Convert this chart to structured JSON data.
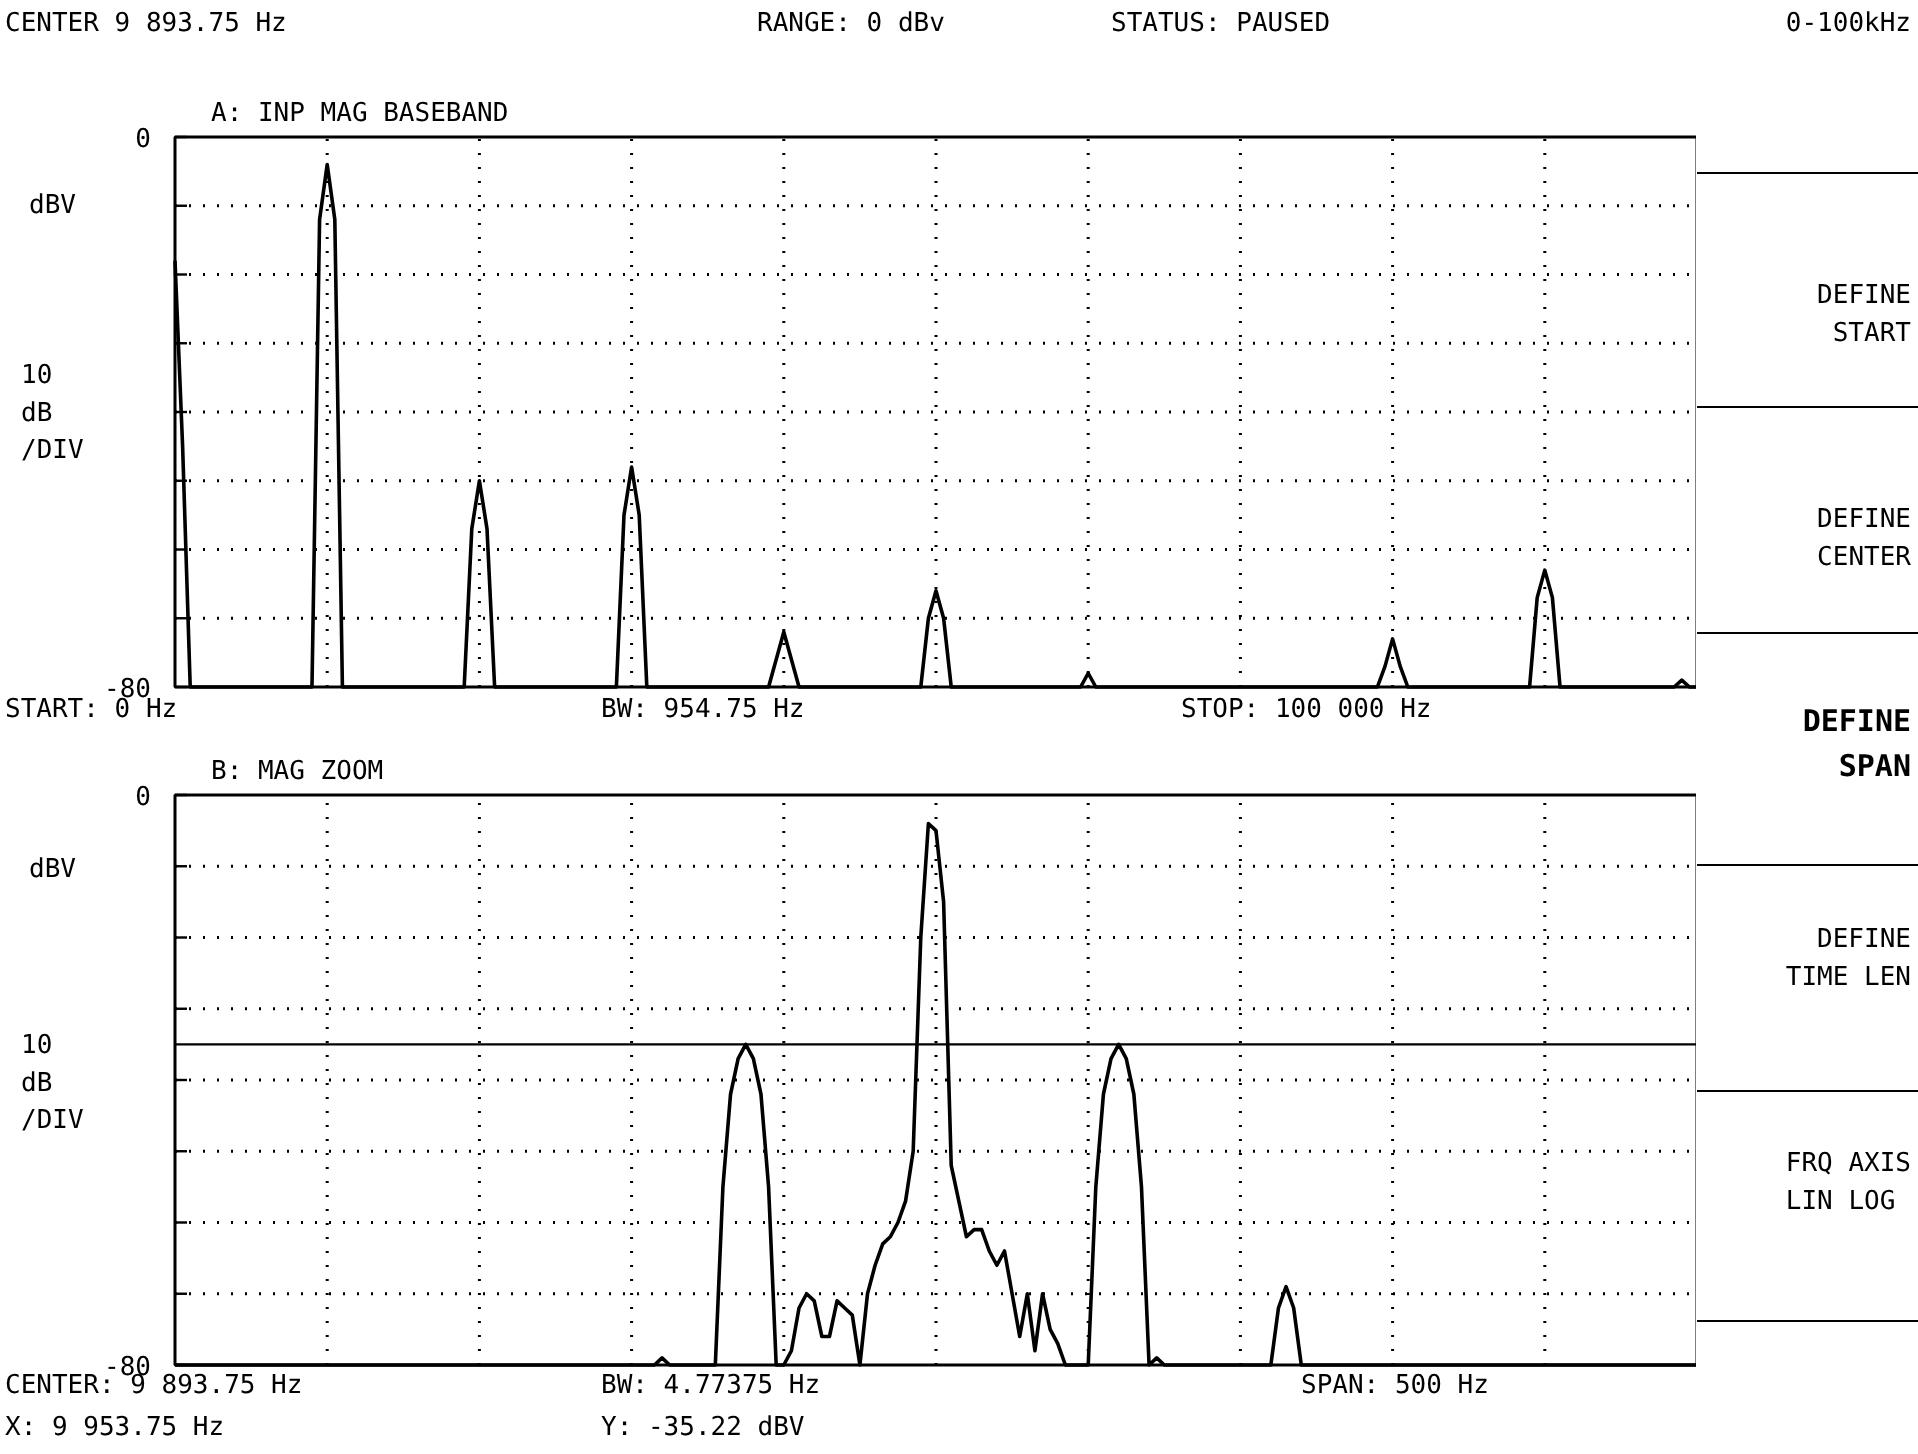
{
  "chart_data": [
    {
      "type": "line",
      "title": "A: INP MAG    BASEBAND",
      "ylim": [
        -80,
        0
      ],
      "categories": [
        null,
        null,
        null,
        null,
        null,
        null,
        null,
        null,
        null,
        null,
        null,
        null,
        null,
        null,
        null,
        null,
        null,
        null,
        null,
        null,
        null,
        null,
        null,
        null,
        null,
        null,
        null,
        null,
        null,
        null,
        null,
        null,
        null,
        null,
        null,
        null,
        null,
        null,
        null,
        null,
        null,
        null,
        null,
        null,
        null,
        null,
        null,
        null,
        null,
        null,
        null,
        null,
        null,
        null,
        null,
        null,
        null,
        null,
        null,
        null,
        null,
        null,
        null,
        null,
        null,
        null,
        null,
        null,
        null,
        null,
        null,
        null,
        null,
        null,
        null,
        null,
        null,
        null,
        null,
        null,
        null,
        null,
        null,
        null,
        null,
        null,
        null,
        null,
        null,
        null,
        null,
        null,
        null,
        null,
        null,
        null,
        null,
        null,
        null,
        null,
        null,
        null,
        null,
        null,
        null,
        null,
        null,
        null,
        null,
        null,
        null,
        null,
        null,
        null,
        null,
        null,
        null,
        null,
        null,
        null,
        null,
        null,
        null,
        null,
        null,
        null,
        null,
        null,
        null,
        null,
        null,
        null,
        null,
        null,
        null,
        null,
        null,
        null,
        null,
        null,
        null,
        null,
        null,
        null,
        null,
        null,
        null,
        null,
        null,
        null,
        null,
        null,
        null,
        null,
        null,
        null,
        null,
        null,
        null,
        null,
        null,
        null,
        null,
        null,
        null,
        null,
        null,
        null,
        null,
        null,
        null,
        null,
        null,
        null,
        null,
        null,
        null,
        null,
        null,
        null,
        null,
        null,
        null,
        null,
        null,
        null,
        null,
        null,
        null,
        null,
        null,
        null,
        null,
        null,
        null,
        null,
        null,
        null,
        null,
        null,
        null
      ],
      "yticks": [
        0,
        {
          "value": -10,
          "label": null
        },
        {
          "value": -20,
          "label": null
        },
        {
          "value": -30,
          "label": null
        },
        {
          "value": -40,
          "label": null
        },
        {
          "value": -50,
          "label": null
        },
        {
          "value": -60,
          "label": null
        },
        {
          "value": -70,
          "label": null
        },
        -80
      ],
      "tick_labels": "y",
      "grid": true,
      "marker": "none",
      "line_style": "solid",
      "series": [
        {
          "color": "#000000",
          "values": [
            -18,
            -45,
            -80,
            -80,
            -80,
            -80,
            -80,
            -80,
            -80,
            -80,
            -80,
            -80,
            -80,
            -80,
            -80,
            -80,
            -80,
            -80,
            -80,
            -12,
            -4,
            -12,
            -80,
            -80,
            -80,
            -80,
            -80,
            -80,
            -80,
            -80,
            -80,
            -80,
            -80,
            -80,
            -80,
            -80,
            -80,
            -80,
            -80,
            -57,
            -50,
            -57,
            -80,
            -80,
            -80,
            -80,
            -80,
            -80,
            -80,
            -80,
            -80,
            -80,
            -80,
            -80,
            -80,
            -80,
            -80,
            -80,
            -80,
            -55,
            -48,
            -55,
            -80,
            -80,
            -80,
            -80,
            -80,
            -80,
            -80,
            -80,
            -80,
            -80,
            -80,
            -80,
            -80,
            -80,
            -80,
            -80,
            -80,
            -76,
            -72,
            -76,
            -80,
            -80,
            -80,
            -80,
            -80,
            -80,
            -80,
            -80,
            -80,
            -80,
            -80,
            -80,
            -80,
            -80,
            -80,
            -80,
            -80,
            -70,
            -66,
            -70,
            -80,
            -80,
            -80,
            -80,
            -80,
            -80,
            -80,
            -80,
            -80,
            -80,
            -80,
            -80,
            -80,
            -80,
            -80,
            -80,
            -80,
            -80,
            -78,
            -80,
            -80,
            -80,
            -80,
            -80,
            -80,
            -80,
            -80,
            -80,
            -80,
            -80,
            -80,
            -80,
            -80,
            -80,
            -80,
            -80,
            -80,
            -80,
            -80,
            -80,
            -80,
            -80,
            -80,
            -80,
            -80,
            -80,
            -80,
            -80,
            -80,
            -80,
            -80,
            -80,
            -80,
            -80,
            -80,
            -80,
            -80,
            -77,
            -73,
            -77,
            -80,
            -80,
            -80,
            -80,
            -80,
            -80,
            -80,
            -80,
            -80,
            -80,
            -80,
            -80,
            -80,
            -80,
            -80,
            -80,
            -80,
            -67,
            -63,
            -67,
            -80,
            -80,
            -80,
            -80,
            -80,
            -80,
            -80,
            -80,
            -80,
            -80,
            -80,
            -80,
            -80,
            -80,
            -80,
            -80,
            -79,
            -80,
            -80
          ]
        }
      ],
      "annotations": [
        "CENTER  9 893.75 Hz",
        "RANGE: 0 dBv",
        "STATUS: PAUSED",
        "dBV",
        "10\ndB\n/DIV",
        "START: 0  Hz",
        "BW: 954.75 Hz",
        "STOP: 100 000 Hz"
      ]
    },
    {
      "type": "line",
      "title": "B: MAG    ZOOM",
      "ylim": [
        -80,
        0
      ],
      "categories": [
        null,
        null,
        null,
        null,
        null,
        null,
        null,
        null,
        null,
        null,
        null,
        null,
        null,
        null,
        null,
        null,
        null,
        null,
        null,
        null,
        null,
        null,
        null,
        null,
        null,
        null,
        null,
        null,
        null,
        null,
        null,
        null,
        null,
        null,
        null,
        null,
        null,
        null,
        null,
        null,
        null,
        null,
        null,
        null,
        null,
        null,
        null,
        null,
        null,
        null,
        null,
        null,
        null,
        null,
        null,
        null,
        null,
        null,
        null,
        null,
        null,
        null,
        null,
        null,
        null,
        null,
        null,
        null,
        null,
        null,
        null,
        null,
        null,
        null,
        null,
        null,
        null,
        null,
        null,
        null,
        null,
        null,
        null,
        null,
        null,
        null,
        null,
        null,
        null,
        null,
        null,
        null,
        null,
        null,
        null,
        null,
        null,
        null,
        null,
        null,
        null,
        null,
        null,
        null,
        null,
        null,
        null,
        null,
        null,
        null,
        null,
        null,
        null,
        null,
        null,
        null,
        null,
        null,
        null,
        null,
        null,
        null,
        null,
        null,
        null,
        null,
        null,
        null,
        null,
        null,
        null,
        null,
        null,
        null,
        null,
        null,
        null,
        null,
        null,
        null,
        null,
        null,
        null,
        null,
        null,
        null,
        null,
        null,
        null,
        null,
        null,
        null,
        null,
        null,
        null,
        null,
        null,
        null,
        null,
        null,
        null,
        null,
        null,
        null,
        null,
        null,
        null,
        null,
        null,
        null,
        null,
        null,
        null,
        null,
        null,
        null,
        null,
        null,
        null,
        null,
        null,
        null,
        null,
        null,
        null,
        null,
        null,
        null,
        null,
        null,
        null,
        null,
        null,
        null,
        null,
        null,
        null,
        null,
        null,
        null,
        null
      ],
      "yticks": [
        0,
        {
          "value": -10,
          "label": null
        },
        {
          "value": -20,
          "label": null
        },
        {
          "value": -30,
          "label": null
        },
        {
          "value": -40,
          "label": null
        },
        {
          "value": -50,
          "label": null
        },
        {
          "value": -60,
          "label": null
        },
        {
          "value": -70,
          "label": null
        },
        -80
      ],
      "tick_labels": "y",
      "grid": true,
      "marker": "none",
      "line_style": "solid",
      "ref_lines": [
        {
          "axis": "y",
          "value": -35,
          "color": "#000000"
        }
      ],
      "series": [
        {
          "color": "#000000",
          "values": [
            -80,
            -80,
            -80,
            -80,
            -80,
            -80,
            -80,
            -80,
            -80,
            -80,
            -80,
            -80,
            -80,
            -80,
            -80,
            -80,
            -80,
            -80,
            -80,
            -80,
            -80,
            -80,
            -80,
            -80,
            -80,
            -80,
            -80,
            -80,
            -80,
            -80,
            -80,
            -80,
            -80,
            -80,
            -80,
            -80,
            -80,
            -80,
            -80,
            -80,
            -80,
            -80,
            -80,
            -80,
            -80,
            -80,
            -80,
            -80,
            -80,
            -80,
            -80,
            -80,
            -80,
            -80,
            -80,
            -80,
            -80,
            -80,
            -80,
            -80,
            -80,
            -80,
            -80,
            -80,
            -79,
            -80,
            -80,
            -80,
            -80,
            -80,
            -80,
            -80,
            -55,
            -42,
            -37,
            -35,
            -37,
            -42,
            -55,
            -80,
            -80,
            -78,
            -72,
            -70,
            -71,
            -76,
            -76,
            -71,
            -72,
            -73,
            -80,
            -70,
            -66,
            -63,
            -62,
            -60,
            -57,
            -50,
            -20,
            -4,
            -5,
            -15,
            -52,
            -57,
            -62,
            -61,
            -61,
            -64,
            -66,
            -64,
            -70,
            -76,
            -70,
            -78,
            -70,
            -75,
            -77,
            -80,
            -80,
            -80,
            -80,
            -55,
            -42,
            -37,
            -35,
            -37,
            -42,
            -55,
            -80,
            -79,
            -80,
            -80,
            -80,
            -80,
            -80,
            -80,
            -80,
            -80,
            -80,
            -80,
            -80,
            -80,
            -80,
            -80,
            -80,
            -72,
            -69,
            -72,
            -80,
            -80,
            -80,
            -80,
            -80,
            -80,
            -80,
            -80,
            -80,
            -80,
            -80,
            -80,
            -80,
            -80,
            -80,
            -80,
            -80,
            -80,
            -80,
            -80,
            -80,
            -80,
            -80,
            -80,
            -80,
            -80,
            -80,
            -80,
            -80,
            -80,
            -80,
            -80,
            -80,
            -80,
            -80,
            -80,
            -80,
            -80,
            -80,
            -80,
            -80,
            -80,
            -80,
            -80,
            -80,
            -80,
            -80,
            -80,
            -80,
            -80,
            -80,
            -80,
            -80
          ]
        }
      ],
      "annotations": [
        "dBV",
        "10\ndB\n/DIV",
        "CENTER: 9 893.75 Hz",
        "BW: 4.77375 Hz",
        "SPAN: 500 Hz",
        "X: 9 953.75 Hz",
        "Y: -35.22 dBV"
      ]
    },
    {
      "type": "other",
      "annotations": [
        "0-100kHz",
        "DEFINE\nSTART",
        "DEFINE\nCENTER",
        "DEFINE\nSPAN",
        "DEFINE\nTIME LEN",
        "FRQ AXIS\nLIN  LOG"
      ]
    }
  ]
}
